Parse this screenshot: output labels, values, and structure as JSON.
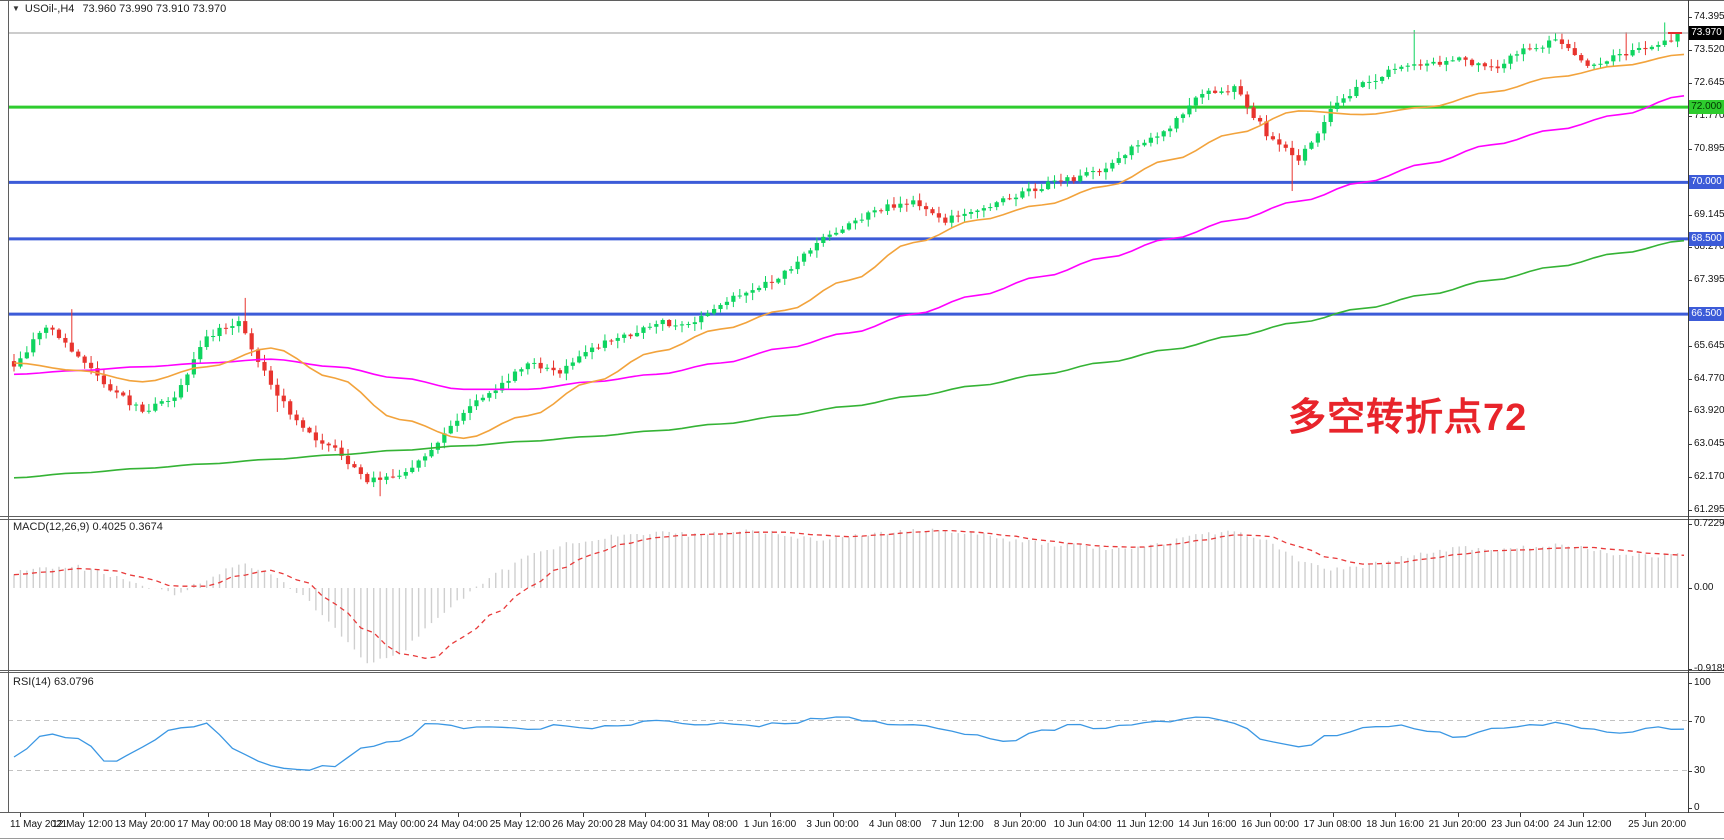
{
  "header": {
    "collapse_icon": "▼",
    "symbol": "USOil-,H4",
    "ohlc": "73.960 73.990 73.910 73.970"
  },
  "annotation": {
    "text": "多空转折点72",
    "color": "#e8242b"
  },
  "colors": {
    "candle_up": "#0ed45f",
    "candle_down": "#e8342e",
    "ma_fast": "#f2a33c",
    "ma_mid": "#ff00ff",
    "ma_slow": "#35b335",
    "level_green": "#2ecc2e",
    "level_blue": "#3c5bd8",
    "price_line": "#9a9a9a",
    "price_marker": "#e03030",
    "macd_hist": "#cfcfcf",
    "macd_signal": "#e83a3a",
    "rsi_line": "#3b97e3",
    "rsi_level": "#c2c2c2",
    "badge_current_bg": "#000000",
    "badge_current_fg": "#ffffff",
    "badge_green_bg": "#2ecc2e",
    "badge_green_fg": "#003300",
    "badge_blue_bg": "#3c5bd8",
    "badge_blue_fg": "#ffffff"
  },
  "chart_data": {
    "type": "candlestick",
    "symbol": "USOil-",
    "timeframe": "H4",
    "current_ohlc": {
      "open": 73.96,
      "high": 73.99,
      "low": 73.91,
      "close": 73.97
    },
    "price_panel": {
      "ylim": [
        61.295,
        74.395
      ],
      "ticks": [
        {
          "t": "74.395",
          "v": 74.395
        },
        {
          "t": "73.520",
          "v": 73.52
        },
        {
          "t": "72.645",
          "v": 72.645
        },
        {
          "t": "71.770",
          "v": 71.77
        },
        {
          "t": "70.895",
          "v": 70.895
        },
        {
          "t": "69.145",
          "v": 69.145
        },
        {
          "t": "68.270",
          "v": 68.27
        },
        {
          "t": "67.395",
          "v": 67.395
        },
        {
          "t": "65.645",
          "v": 65.645
        },
        {
          "t": "64.770",
          "v": 64.77
        },
        {
          "t": "63.920",
          "v": 63.92
        },
        {
          "t": "63.045",
          "v": 63.045
        },
        {
          "t": "62.170",
          "v": 62.17
        },
        {
          "t": "61.295",
          "v": 61.295
        }
      ],
      "badges": [
        {
          "t": "73.970",
          "v": 73.97,
          "type": "current"
        },
        {
          "t": "72.000",
          "v": 72.0,
          "type": "green"
        },
        {
          "t": "70.000",
          "v": 70.0,
          "type": "blue"
        },
        {
          "t": "68.500",
          "v": 68.5,
          "type": "blue"
        },
        {
          "t": "66.500",
          "v": 66.5,
          "type": "blue"
        }
      ],
      "hlines": [
        {
          "v": 72.0,
          "type": "green"
        },
        {
          "v": 70.0,
          "type": "blue"
        },
        {
          "v": 68.5,
          "type": "blue"
        },
        {
          "v": 66.5,
          "type": "blue"
        }
      ],
      "current_price": 73.97,
      "bars": 260,
      "anchor_step": 5,
      "close_anchors": [
        65.1,
        66.2,
        65.4,
        64.5,
        63.9,
        64.3,
        65.9,
        66.3,
        64.6,
        63.4,
        62.9,
        62.1,
        62.2,
        62.9,
        63.9,
        64.5,
        65.2,
        65.0,
        65.6,
        65.9,
        66.3,
        66.2,
        66.8,
        67.1,
        67.6,
        68.4,
        68.9,
        69.3,
        69.5,
        69.0,
        69.2,
        69.6,
        69.9,
        70.1,
        70.4,
        71.0,
        71.5,
        72.4,
        72.5,
        71.3,
        70.6,
        71.9,
        72.6,
        73.0,
        73.1,
        73.3,
        73.0,
        73.5,
        73.75,
        73.15,
        73.35,
        73.6,
        73.97
      ],
      "wick_events": [
        {
          "i": 9,
          "high": 66.63
        },
        {
          "i": 36,
          "high": 66.93
        },
        {
          "i": 41,
          "low": 63.9
        },
        {
          "i": 57,
          "low": 61.66
        },
        {
          "i": 199,
          "low": 69.77
        },
        {
          "i": 218,
          "high": 74.05
        },
        {
          "i": 251,
          "high": 73.99
        },
        {
          "i": 257,
          "high": 74.25
        }
      ],
      "ma_step": 10,
      "ma_fast": [
        65.2,
        65.0,
        64.7,
        65.1,
        65.6,
        64.8,
        63.7,
        63.2,
        63.8,
        64.7,
        65.5,
        66.1,
        66.6,
        67.4,
        68.4,
        69.0,
        69.4,
        69.9,
        70.6,
        71.3,
        71.9,
        71.8,
        72.0,
        72.4,
        72.8,
        73.1,
        73.4
      ],
      "ma_mid": [
        64.9,
        65.0,
        65.1,
        65.2,
        65.3,
        65.1,
        64.8,
        64.5,
        64.5,
        64.7,
        64.9,
        65.2,
        65.6,
        66.0,
        66.5,
        67.0,
        67.5,
        68.0,
        68.5,
        69.0,
        69.5,
        70.0,
        70.5,
        71.0,
        71.4,
        71.8,
        72.3
      ],
      "ma_slow": [
        62.15,
        62.28,
        62.4,
        62.52,
        62.64,
        62.76,
        62.88,
        63.0,
        63.12,
        63.25,
        63.4,
        63.58,
        63.8,
        64.05,
        64.32,
        64.6,
        64.9,
        65.22,
        65.56,
        65.92,
        66.28,
        66.65,
        67.02,
        67.4,
        67.76,
        68.12,
        68.45
      ]
    },
    "macd_panel": {
      "label": "MACD(12,26,9) 0.4025 0.3674",
      "main_value": 0.4025,
      "signal_value": 0.3674,
      "ticks": [
        {
          "t": "0.7229",
          "v": 0.7229
        },
        {
          "t": "0.00",
          "v": 0.0
        },
        {
          "t": "-0.9185",
          "v": -0.9185
        }
      ],
      "anchor_step": 5,
      "main_anchors": [
        0.18,
        0.22,
        0.24,
        0.14,
        0.02,
        -0.08,
        0.1,
        0.28,
        0.15,
        -0.1,
        -0.45,
        -0.84,
        -0.76,
        -0.4,
        -0.1,
        0.15,
        0.35,
        0.48,
        0.55,
        0.6,
        0.63,
        0.6,
        0.62,
        0.66,
        0.6,
        0.55,
        0.58,
        0.62,
        0.66,
        0.64,
        0.62,
        0.55,
        0.5,
        0.48,
        0.45,
        0.47,
        0.52,
        0.6,
        0.64,
        0.54,
        0.32,
        0.2,
        0.24,
        0.32,
        0.4,
        0.46,
        0.43,
        0.46,
        0.49,
        0.45,
        0.38,
        0.36,
        0.4
      ],
      "signal_anchors": [
        0.15,
        0.18,
        0.22,
        0.2,
        0.12,
        0.02,
        0.02,
        0.14,
        0.2,
        0.08,
        -0.18,
        -0.48,
        -0.74,
        -0.8,
        -0.55,
        -0.28,
        0.0,
        0.22,
        0.38,
        0.5,
        0.57,
        0.6,
        0.61,
        0.63,
        0.63,
        0.6,
        0.58,
        0.6,
        0.63,
        0.65,
        0.63,
        0.59,
        0.54,
        0.5,
        0.47,
        0.46,
        0.49,
        0.54,
        0.6,
        0.59,
        0.47,
        0.34,
        0.27,
        0.28,
        0.33,
        0.38,
        0.42,
        0.43,
        0.45,
        0.46,
        0.43,
        0.39,
        0.37
      ]
    },
    "rsi_panel": {
      "label": "RSI(14) 63.0796",
      "value": 63.0796,
      "ticks": [
        {
          "t": "100",
          "v": 100
        },
        {
          "t": "70",
          "v": 70
        },
        {
          "t": "30",
          "v": 30
        },
        {
          "t": "0",
          "v": 0
        }
      ],
      "levels": [
        70,
        30
      ],
      "anchor_step": 5,
      "anchors": [
        42,
        60,
        55,
        37,
        48,
        64,
        67,
        45,
        33,
        31,
        34,
        50,
        54,
        68,
        64,
        66,
        62,
        67,
        64,
        67,
        70,
        66,
        68,
        65,
        68,
        71,
        72,
        68,
        66,
        63,
        58,
        53,
        62,
        66,
        64,
        67,
        70,
        72,
        68,
        54,
        48,
        58,
        64,
        66,
        62,
        57,
        63,
        66,
        68,
        64,
        59,
        65,
        63
      ]
    },
    "time_axis": {
      "labels": [
        "11 May 2021",
        "12 May 12:00",
        "13 May 20:00",
        "17 May 00:00",
        "18 May 08:00",
        "19 May 16:00",
        "21 May 00:00",
        "24 May 04:00",
        "25 May 12:00",
        "26 May 20:00",
        "28 May 04:00",
        "31 May 08:00",
        "1 Jun 16:00",
        "3 Jun 00:00",
        "4 Jun 08:00",
        "7 Jun 12:00",
        "8 Jun 20:00",
        "10 Jun 04:00",
        "11 Jun 12:00",
        "14 Jun 16:00",
        "16 Jun 00:00",
        "17 Jun 08:00",
        "18 Jun 16:00",
        "21 Jun 20:00",
        "23 Jun 04:00",
        "24 Jun 12:00",
        "25 Jun 20:00"
      ]
    }
  }
}
